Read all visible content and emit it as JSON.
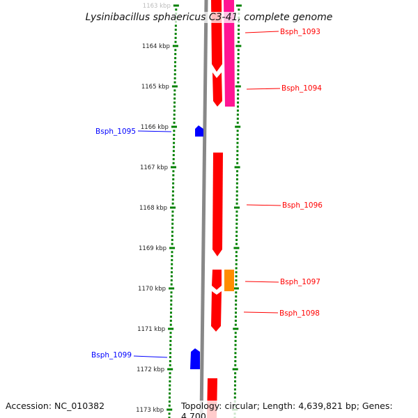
{
  "title": "Lysinibacillus sphaericus C3-41, complete genome",
  "accession": "Accession: NC_010382",
  "topology": "Topology: circular; Length: 4,639,821 bp; Genes: 4,700",
  "ticks": [
    "1163 kbp",
    "1164 kbp",
    "1165 kbp",
    "1166 kbp",
    "1167 kbp",
    "1168 kbp",
    "1169 kbp",
    "1170 kbp",
    "1171 kbp",
    "1172 kbp",
    "1173 kbp"
  ],
  "genes": {
    "g1093": "Bsph_1093",
    "g1094": "Bsph_1094",
    "g1095": "Bsph_1095",
    "g1096": "Bsph_1096",
    "g1097": "Bsph_1097",
    "g1098": "Bsph_1098",
    "g1099": "Bsph_1099"
  },
  "colors": {
    "forward": "#ff0000",
    "reverse": "#0000ff",
    "magenta": "#ff1493",
    "orange": "#ff8c00",
    "tick": "#008000",
    "backbone": "#888888"
  }
}
